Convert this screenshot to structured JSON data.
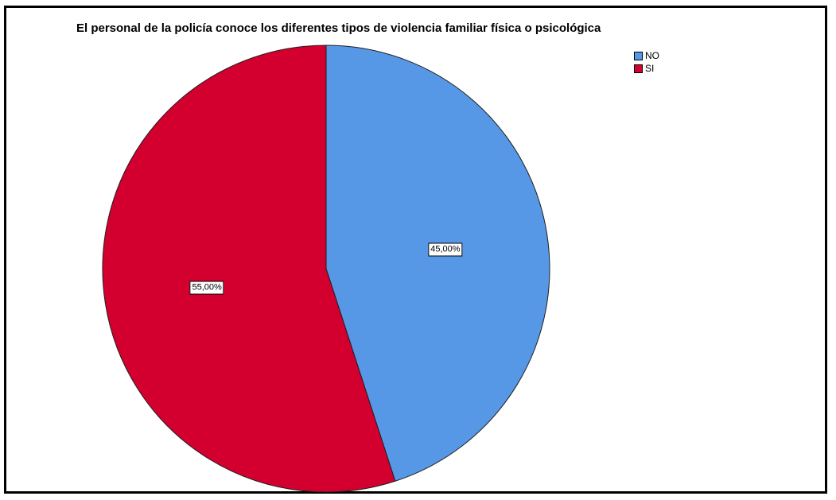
{
  "chart_data": {
    "type": "pie",
    "title": "El personal de la policía conoce los diferentes tipos de violencia familiar física o psicológica",
    "categories": [
      "NO",
      "SI"
    ],
    "values": [
      45.0,
      55.0
    ],
    "data_labels": [
      "45,00%",
      "55,00%"
    ],
    "colors": [
      "#5698e6",
      "#d3002f"
    ],
    "legend_position": "top-right",
    "start_angle_deg": 0,
    "direction": "clockwise"
  }
}
